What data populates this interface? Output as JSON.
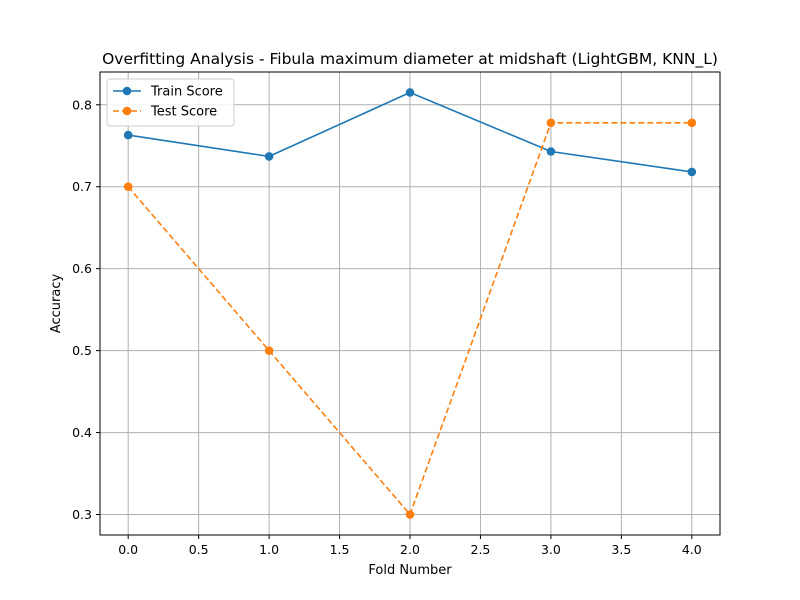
{
  "chart_data": {
    "type": "line",
    "title": "Overfitting Analysis - Fibula maximum diameter at midshaft (LightGBM, KNN_L)",
    "xlabel": "Fold Number",
    "ylabel": "Accuracy",
    "x": [
      0,
      1,
      2,
      3,
      4
    ],
    "xlim": [
      -0.2,
      4.2
    ],
    "ylim": [
      0.275,
      0.84
    ],
    "xticks": [
      0.0,
      0.5,
      1.0,
      1.5,
      2.0,
      2.5,
      3.0,
      3.5,
      4.0
    ],
    "xtick_labels": [
      "0.0",
      "0.5",
      "1.0",
      "1.5",
      "2.0",
      "2.5",
      "3.0",
      "3.5",
      "4.0"
    ],
    "yticks": [
      0.3,
      0.4,
      0.5,
      0.6,
      0.7,
      0.8
    ],
    "ytick_labels": [
      "0.3",
      "0.4",
      "0.5",
      "0.6",
      "0.7",
      "0.8"
    ],
    "grid": true,
    "legend_position": "top-left",
    "series": [
      {
        "name": "Train Score",
        "values": [
          0.763,
          0.737,
          0.815,
          0.743,
          0.718
        ],
        "color": "#1f77b4",
        "style": "solid",
        "marker": "circle"
      },
      {
        "name": "Test Score",
        "values": [
          0.7,
          0.5,
          0.3,
          0.778,
          0.778
        ],
        "color": "#ff7f0e",
        "style": "dashed",
        "marker": "circle"
      }
    ]
  }
}
